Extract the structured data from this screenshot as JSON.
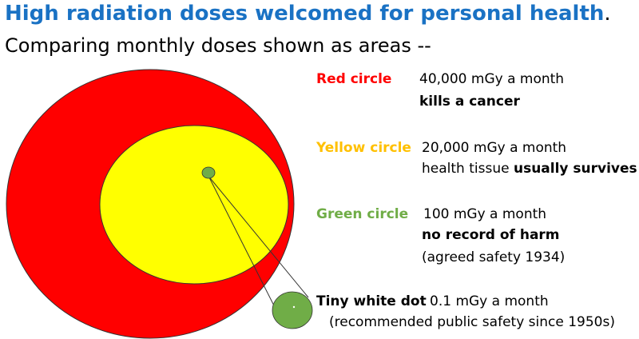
{
  "title": "High radiation doses welcomed for personal health",
  "title_period": ".",
  "subtitle": "Comparing monthly doses shown as areas --",
  "colors": {
    "title": "#1a72c4",
    "red": "#ff0000",
    "yellow": "#ffff00",
    "green": "#70ad47",
    "white_dot": "#ffffff",
    "outline": "#333333"
  },
  "legend": {
    "red": {
      "label": "Red circle",
      "dose": "40,000 mGy a month",
      "effect": "kills a cancer"
    },
    "yellow": {
      "label": "Yellow circle",
      "dose": "20,000 mGy a month",
      "effect_normal": "health tissue ",
      "effect_bold": "usually survives"
    },
    "green": {
      "label": "Green circle",
      "dose": "100 mGy a month",
      "effect": "no record of harm",
      "note": "(agreed safety 1934)"
    },
    "white": {
      "label": "Tiny white dot",
      "dose": "0.1 mGy a month",
      "note": "(recommended public safety since 1950s)"
    }
  }
}
